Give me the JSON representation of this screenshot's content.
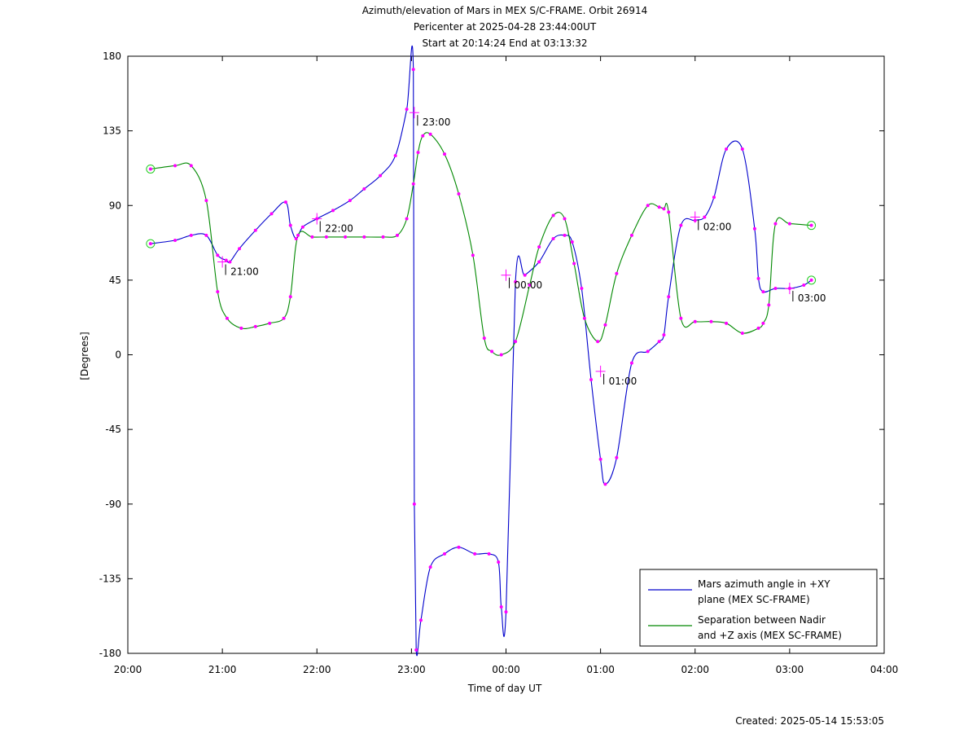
{
  "chart_data": {
    "type": "line",
    "title_lines": [
      "Azimuth/elevation of Mars in MEX S/C-FRAME.  Orbit 26914",
      "Pericenter at 2025-04-28 23:44:00UT",
      "Start at 20:14:24 End at 03:13:32"
    ],
    "xlabel": "Time of day UT",
    "ylabel": "[Degrees]",
    "created": "Created: 2025-05-14 15:53:05",
    "x_unit": "hours since 20:00 UT",
    "xlim": [
      0,
      8
    ],
    "ylim": [
      -180,
      180
    ],
    "x_ticks": [
      {
        "value": 0,
        "label": "20:00"
      },
      {
        "value": 1,
        "label": "21:00"
      },
      {
        "value": 2,
        "label": "22:00"
      },
      {
        "value": 3,
        "label": "23:00"
      },
      {
        "value": 4,
        "label": "00:00"
      },
      {
        "value": 5,
        "label": "01:00"
      },
      {
        "value": 6,
        "label": "02:00"
      },
      {
        "value": 7,
        "label": "03:00"
      },
      {
        "value": 8,
        "label": "04:00"
      }
    ],
    "y_ticks": [
      180,
      135,
      90,
      45,
      0,
      -45,
      -90,
      -135,
      -180
    ],
    "legend_position": "bottom-right",
    "series": [
      {
        "name": "Mars azimuth angle in +XY plane (MEX SC-FRAME)",
        "legend_lines": [
          "Mars azimuth angle in +XY",
          "plane (MEX SC-FRAME)"
        ],
        "color": "#0000cc",
        "x": [
          0.24,
          0.5,
          0.67,
          0.83,
          0.95,
          1.04,
          1.08,
          1.18,
          1.35,
          1.52,
          1.67,
          1.72,
          1.78,
          1.85,
          2.0,
          2.17,
          2.35,
          2.5,
          2.67,
          2.83,
          2.95,
          3.02,
          3.03,
          3.05,
          3.1,
          3.2,
          3.35,
          3.5,
          3.67,
          3.82,
          3.92,
          3.95,
          4.0,
          4.1,
          4.2,
          4.35,
          4.5,
          4.62,
          4.7,
          4.8,
          4.9,
          5.0,
          5.05,
          5.17,
          5.33,
          5.5,
          5.62,
          5.67,
          5.72,
          5.85,
          6.0,
          6.1,
          6.2,
          6.33,
          6.5,
          6.63,
          6.67,
          6.72,
          6.85,
          7.0,
          7.15,
          7.23
        ],
        "y": [
          67,
          69,
          72,
          72,
          60,
          57,
          56,
          64,
          75,
          85,
          92,
          78,
          70,
          77,
          82,
          87,
          93,
          100,
          108,
          120,
          148,
          172,
          -90,
          -178,
          -160,
          -128,
          -120,
          -116,
          -120,
          -120,
          -125,
          -152,
          -155,
          44,
          48,
          56,
          70,
          72,
          68,
          40,
          -15,
          -63,
          -78,
          -62,
          -5,
          2,
          8,
          12,
          35,
          78,
          81,
          83,
          95,
          124,
          124,
          76,
          46,
          38,
          40,
          40,
          42,
          45
        ]
      },
      {
        "name": "Separation between Nadir and +Z axis (MEX SC-FRAME)",
        "legend_lines": [
          "Separation between Nadir",
          "and +Z axis (MEX SC-FRAME)"
        ],
        "color": "#008800",
        "x": [
          0.24,
          0.5,
          0.67,
          0.83,
          0.95,
          1.05,
          1.2,
          1.35,
          1.5,
          1.65,
          1.72,
          1.8,
          1.95,
          2.1,
          2.3,
          2.5,
          2.7,
          2.85,
          2.95,
          3.02,
          3.07,
          3.12,
          3.2,
          3.35,
          3.5,
          3.65,
          3.77,
          3.85,
          3.95,
          4.1,
          4.25,
          4.35,
          4.5,
          4.62,
          4.72,
          4.83,
          4.97,
          5.05,
          5.17,
          5.33,
          5.5,
          5.62,
          5.67,
          5.72,
          5.85,
          6.0,
          6.17,
          6.33,
          6.5,
          6.67,
          6.72,
          6.78,
          6.85,
          7.0,
          7.23
        ],
        "y": [
          112,
          114,
          114,
          93,
          38,
          22,
          16,
          17,
          19,
          22,
          35,
          72,
          71,
          71,
          71,
          71,
          71,
          72,
          82,
          103,
          122,
          132,
          133,
          121,
          97,
          60,
          10,
          2,
          0,
          8,
          42,
          65,
          84,
          82,
          55,
          22,
          8,
          18,
          49,
          72,
          90,
          89,
          88,
          86,
          22,
          20,
          20,
          19,
          13,
          16,
          19,
          30,
          79,
          79,
          78
        ]
      }
    ],
    "time_labels": [
      {
        "x": 1.0,
        "y": 56,
        "label": "21:00"
      },
      {
        "x": 2.0,
        "y": 82,
        "label": "22:00"
      },
      {
        "x": 3.03,
        "y": 146,
        "label": "23:00"
      },
      {
        "x": 4.0,
        "y": 48,
        "label": "00:00"
      },
      {
        "x": 5.0,
        "y": -10,
        "label": "01:00"
      },
      {
        "x": 6.0,
        "y": 83,
        "label": "02:00"
      },
      {
        "x": 7.0,
        "y": 40,
        "label": "03:00"
      }
    ]
  }
}
